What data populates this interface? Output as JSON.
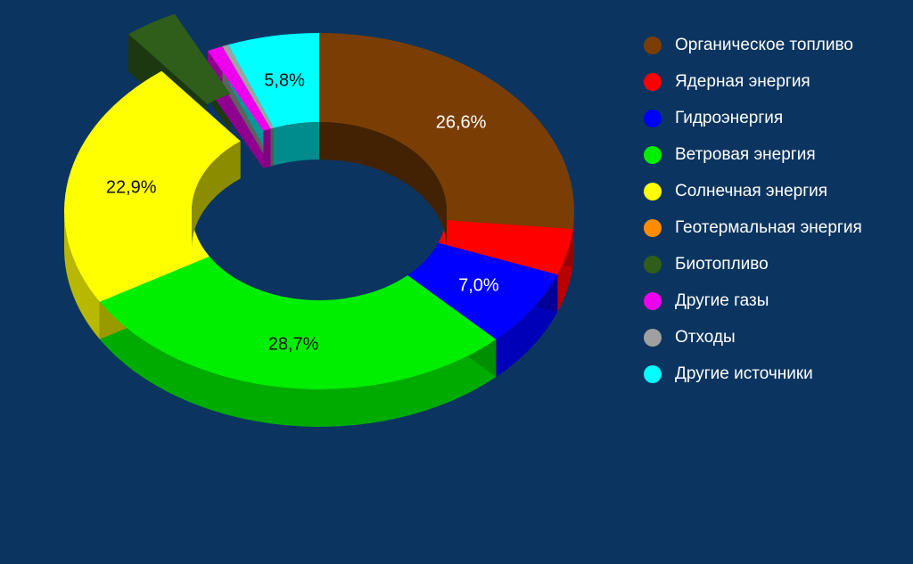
{
  "chart_data": {
    "type": "pie",
    "style": "3d-donut",
    "categories": [
      "Органическое топливо",
      "Ядерная энергия",
      "Гидроэнергия",
      "Ветровая энергия",
      "Солнечная энергия",
      "Геотермальная энергия",
      "Биотопливо",
      "Другие газы",
      "Отходы",
      "Другие источники"
    ],
    "values": [
      26.6,
      4.2,
      7.0,
      28.7,
      22.9,
      0.0,
      3.4,
      1.0,
      0.4,
      5.8
    ],
    "data_labels": [
      "26,6%",
      "",
      "7,0%",
      "28,7%",
      "22,9%",
      "",
      "",
      "",
      "",
      "5,8%"
    ],
    "colors": [
      "#7a3e05",
      "#ff0000",
      "#0000ff",
      "#00ee00",
      "#ffff00",
      "#ff8c00",
      "#2e5e1a",
      "#ee00ee",
      "#a0a0a0",
      "#00ffff"
    ],
    "exploded": [
      "Биотопливо"
    ],
    "legend_position": "right"
  }
}
